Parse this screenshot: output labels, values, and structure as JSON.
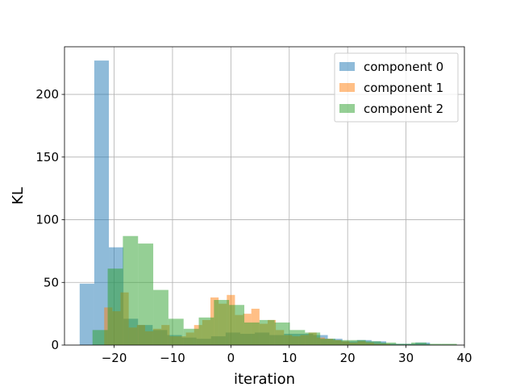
{
  "chart_data": {
    "type": "bar",
    "subtype": "overlapping-histogram",
    "xlabel": "iteration",
    "ylabel": "KL",
    "xlim": [
      -28.5,
      40
    ],
    "ylim": [
      0,
      238
    ],
    "xticks": [
      "−20",
      "−10",
      "0",
      "10",
      "20",
      "30",
      "40"
    ],
    "yticks": [
      "0",
      "50",
      "100",
      "150",
      "200"
    ],
    "grid": true,
    "legend_position": "top-right",
    "bar_opacity": 0.5,
    "series": [
      {
        "name": "component 0",
        "color": "#1f77b4",
        "bins": [
          {
            "x0": -25.9,
            "x1": -23.4,
            "value": 49
          },
          {
            "x0": -23.4,
            "x1": -20.9,
            "value": 227
          },
          {
            "x0": -20.9,
            "x1": -18.4,
            "value": 78
          },
          {
            "x0": -18.4,
            "x1": -15.9,
            "value": 21
          },
          {
            "x0": -15.9,
            "x1": -13.4,
            "value": 16
          },
          {
            "x0": -13.4,
            "x1": -10.9,
            "value": 12
          },
          {
            "x0": -10.9,
            "x1": -8.4,
            "value": 8
          },
          {
            "x0": -8.4,
            "x1": -5.9,
            "value": 6
          },
          {
            "x0": -5.9,
            "x1": -3.4,
            "value": 5
          },
          {
            "x0": -3.4,
            "x1": -0.9,
            "value": 7
          },
          {
            "x0": -0.9,
            "x1": 1.6,
            "value": 10
          },
          {
            "x0": 1.6,
            "x1": 4.1,
            "value": 9
          },
          {
            "x0": 4.1,
            "x1": 6.6,
            "value": 10
          },
          {
            "x0": 6.6,
            "x1": 9.1,
            "value": 8
          },
          {
            "x0": 9.1,
            "x1": 11.6,
            "value": 9
          },
          {
            "x0": 11.6,
            "x1": 14.1,
            "value": 9
          },
          {
            "x0": 14.1,
            "x1": 16.6,
            "value": 8
          },
          {
            "x0": 16.6,
            "x1": 19.1,
            "value": 5
          },
          {
            "x0": 19.1,
            "x1": 21.6,
            "value": 3
          },
          {
            "x0": 21.6,
            "x1": 24.1,
            "value": 4
          },
          {
            "x0": 24.1,
            "x1": 26.6,
            "value": 3
          },
          {
            "x0": 26.6,
            "x1": 29.1,
            "value": 1
          },
          {
            "x0": 29.1,
            "x1": 31.6,
            "value": 1
          },
          {
            "x0": 31.6,
            "x1": 34.1,
            "value": 2
          }
        ]
      },
      {
        "name": "component 1",
        "color": "#ff7f0e",
        "bins": [
          {
            "x0": -21.7,
            "x1": -20.3,
            "value": 30
          },
          {
            "x0": -20.3,
            "x1": -18.9,
            "value": 27
          },
          {
            "x0": -18.9,
            "x1": -17.5,
            "value": 42
          },
          {
            "x0": -17.5,
            "x1": -16.1,
            "value": 14
          },
          {
            "x0": -16.1,
            "x1": -14.7,
            "value": 16
          },
          {
            "x0": -14.7,
            "x1": -13.3,
            "value": 11
          },
          {
            "x0": -13.3,
            "x1": -11.9,
            "value": 13
          },
          {
            "x0": -11.9,
            "x1": -10.5,
            "value": 16
          },
          {
            "x0": -10.5,
            "x1": -9.1,
            "value": 7
          },
          {
            "x0": -9.1,
            "x1": -7.7,
            "value": 7
          },
          {
            "x0": -7.7,
            "x1": -6.3,
            "value": 10
          },
          {
            "x0": -6.3,
            "x1": -4.9,
            "value": 16
          },
          {
            "x0": -4.9,
            "x1": -3.5,
            "value": 20
          },
          {
            "x0": -3.5,
            "x1": -2.1,
            "value": 38
          },
          {
            "x0": -2.1,
            "x1": -0.7,
            "value": 33
          },
          {
            "x0": -0.7,
            "x1": 0.7,
            "value": 40
          },
          {
            "x0": 0.7,
            "x1": 2.1,
            "value": 24
          },
          {
            "x0": 2.1,
            "x1": 3.5,
            "value": 25
          },
          {
            "x0": 3.5,
            "x1": 4.9,
            "value": 29
          },
          {
            "x0": 4.9,
            "x1": 6.3,
            "value": 17
          },
          {
            "x0": 6.3,
            "x1": 7.7,
            "value": 20
          },
          {
            "x0": 7.7,
            "x1": 9.1,
            "value": 12
          },
          {
            "x0": 9.1,
            "x1": 10.5,
            "value": 8
          },
          {
            "x0": 10.5,
            "x1": 11.9,
            "value": 7
          },
          {
            "x0": 11.9,
            "x1": 13.3,
            "value": 8
          },
          {
            "x0": 13.3,
            "x1": 14.7,
            "value": 10
          },
          {
            "x0": 14.7,
            "x1": 16.1,
            "value": 6
          },
          {
            "x0": 16.1,
            "x1": 17.5,
            "value": 5
          },
          {
            "x0": 17.5,
            "x1": 18.9,
            "value": 4
          },
          {
            "x0": 18.9,
            "x1": 20.3,
            "value": 3
          },
          {
            "x0": 20.3,
            "x1": 21.7,
            "value": 2
          },
          {
            "x0": 21.7,
            "x1": 23.1,
            "value": 3
          },
          {
            "x0": 23.1,
            "x1": 24.5,
            "value": 2
          },
          {
            "x0": 24.5,
            "x1": 25.9,
            "value": 1
          },
          {
            "x0": 25.9,
            "x1": 27.3,
            "value": 1
          }
        ]
      },
      {
        "name": "component 2",
        "color": "#2ca02c",
        "bins": [
          {
            "x0": -23.7,
            "x1": -21.1,
            "value": 12
          },
          {
            "x0": -21.1,
            "x1": -18.5,
            "value": 61
          },
          {
            "x0": -18.5,
            "x1": -15.9,
            "value": 87
          },
          {
            "x0": -15.9,
            "x1": -13.3,
            "value": 81
          },
          {
            "x0": -13.3,
            "x1": -10.7,
            "value": 44
          },
          {
            "x0": -10.7,
            "x1": -8.1,
            "value": 21
          },
          {
            "x0": -8.1,
            "x1": -5.5,
            "value": 13
          },
          {
            "x0": -5.5,
            "x1": -2.9,
            "value": 22
          },
          {
            "x0": -2.9,
            "x1": -0.3,
            "value": 36
          },
          {
            "x0": -0.3,
            "x1": 2.3,
            "value": 32
          },
          {
            "x0": 2.3,
            "x1": 4.9,
            "value": 18
          },
          {
            "x0": 4.9,
            "x1": 7.5,
            "value": 20
          },
          {
            "x0": 7.5,
            "x1": 10.1,
            "value": 18
          },
          {
            "x0": 10.1,
            "x1": 12.7,
            "value": 12
          },
          {
            "x0": 12.7,
            "x1": 15.3,
            "value": 10
          },
          {
            "x0": 15.3,
            "x1": 17.9,
            "value": 5
          },
          {
            "x0": 17.9,
            "x1": 20.5,
            "value": 4
          },
          {
            "x0": 20.5,
            "x1": 23.1,
            "value": 4
          },
          {
            "x0": 23.1,
            "x1": 25.7,
            "value": 3
          },
          {
            "x0": 25.7,
            "x1": 28.3,
            "value": 2
          },
          {
            "x0": 28.3,
            "x1": 30.9,
            "value": 1
          },
          {
            "x0": 30.9,
            "x1": 33.5,
            "value": 2
          },
          {
            "x0": 33.5,
            "x1": 36.1,
            "value": 1
          },
          {
            "x0": 36.1,
            "x1": 38.7,
            "value": 1
          }
        ]
      }
    ]
  }
}
